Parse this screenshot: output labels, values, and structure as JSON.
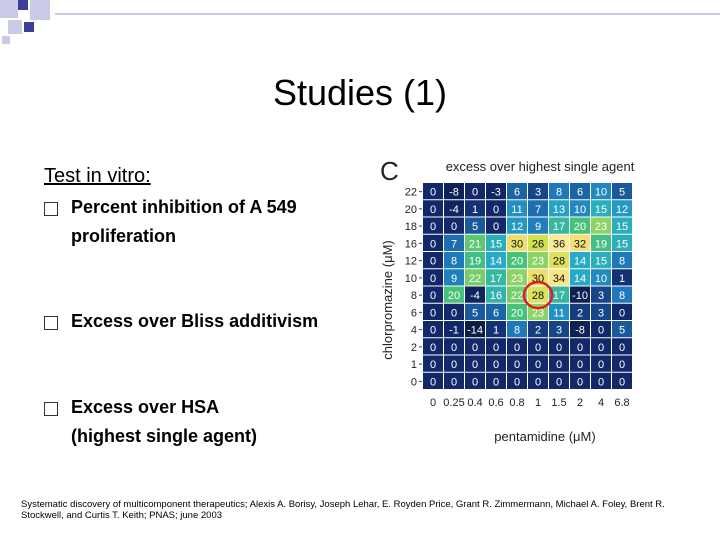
{
  "slide": {
    "title": "Studies (1)",
    "subtitle": "Test in vitro:",
    "bullets": [
      {
        "line1": "Percent inhibition of A 549",
        "line2": "proliferation"
      },
      {
        "line1": "Excess over Bliss additivism",
        "line2": ""
      },
      {
        "line1": "Excess over HSA",
        "line2": "(highest single agent)"
      }
    ],
    "citation_line1": "Systematic discovery of multicomponent therapeutics; Alexis A. Borisy, Joseph Lehar, E. Royden Price, Grant R. Zimmermann, Michael A. Foley, Brent R.",
    "citation_line2": "Stockwell, and Curtis T. Keith; PNAS; june 2003",
    "colors": {
      "accent_light": "#c9cbe6",
      "accent_dark": "#3b3f9a"
    }
  },
  "chart_data": {
    "type": "heatmap",
    "panel_label": "C",
    "title": "excess over highest single agent",
    "xlabel": "pentamidine (μM)",
    "ylabel": "chlorpromazine (μM)",
    "x": [
      "0",
      "0.25",
      "0.4",
      "0.6",
      "0.8",
      "1",
      "1.5",
      "2",
      "4",
      "6.8"
    ],
    "y": [
      "22",
      "20",
      "18",
      "16",
      "12",
      "10",
      "8",
      "6",
      "4",
      "2",
      "1",
      "0"
    ],
    "values": [
      [
        0,
        -8,
        0,
        -3,
        6,
        3,
        8,
        6,
        10,
        5
      ],
      [
        0,
        -4,
        1,
        0,
        11,
        7,
        13,
        10,
        15,
        12
      ],
      [
        0,
        0,
        5,
        0,
        12,
        9,
        17,
        20,
        23,
        15
      ],
      [
        0,
        7,
        21,
        15,
        30,
        26,
        36,
        32,
        19,
        15
      ],
      [
        0,
        8,
        19,
        14,
        20,
        23,
        28,
        14,
        15,
        8
      ],
      [
        0,
        9,
        22,
        17,
        23,
        30,
        34,
        14,
        10,
        1
      ],
      [
        0,
        20,
        -4,
        16,
        22,
        28,
        17,
        -10,
        3,
        8
      ],
      [
        0,
        0,
        5,
        6,
        20,
        23,
        11,
        2,
        3,
        0
      ],
      [
        0,
        -1,
        -14,
        1,
        8,
        2,
        3,
        -8,
        0,
        5
      ],
      [
        0,
        0,
        0,
        0,
        0,
        0,
        0,
        0,
        0,
        0
      ],
      [
        0,
        0,
        0,
        0,
        0,
        0,
        0,
        0,
        0,
        0
      ],
      [
        0,
        0,
        0,
        0,
        0,
        0,
        0,
        0,
        0,
        0
      ]
    ],
    "highlight": {
      "row": 6,
      "col": 5
    }
  }
}
